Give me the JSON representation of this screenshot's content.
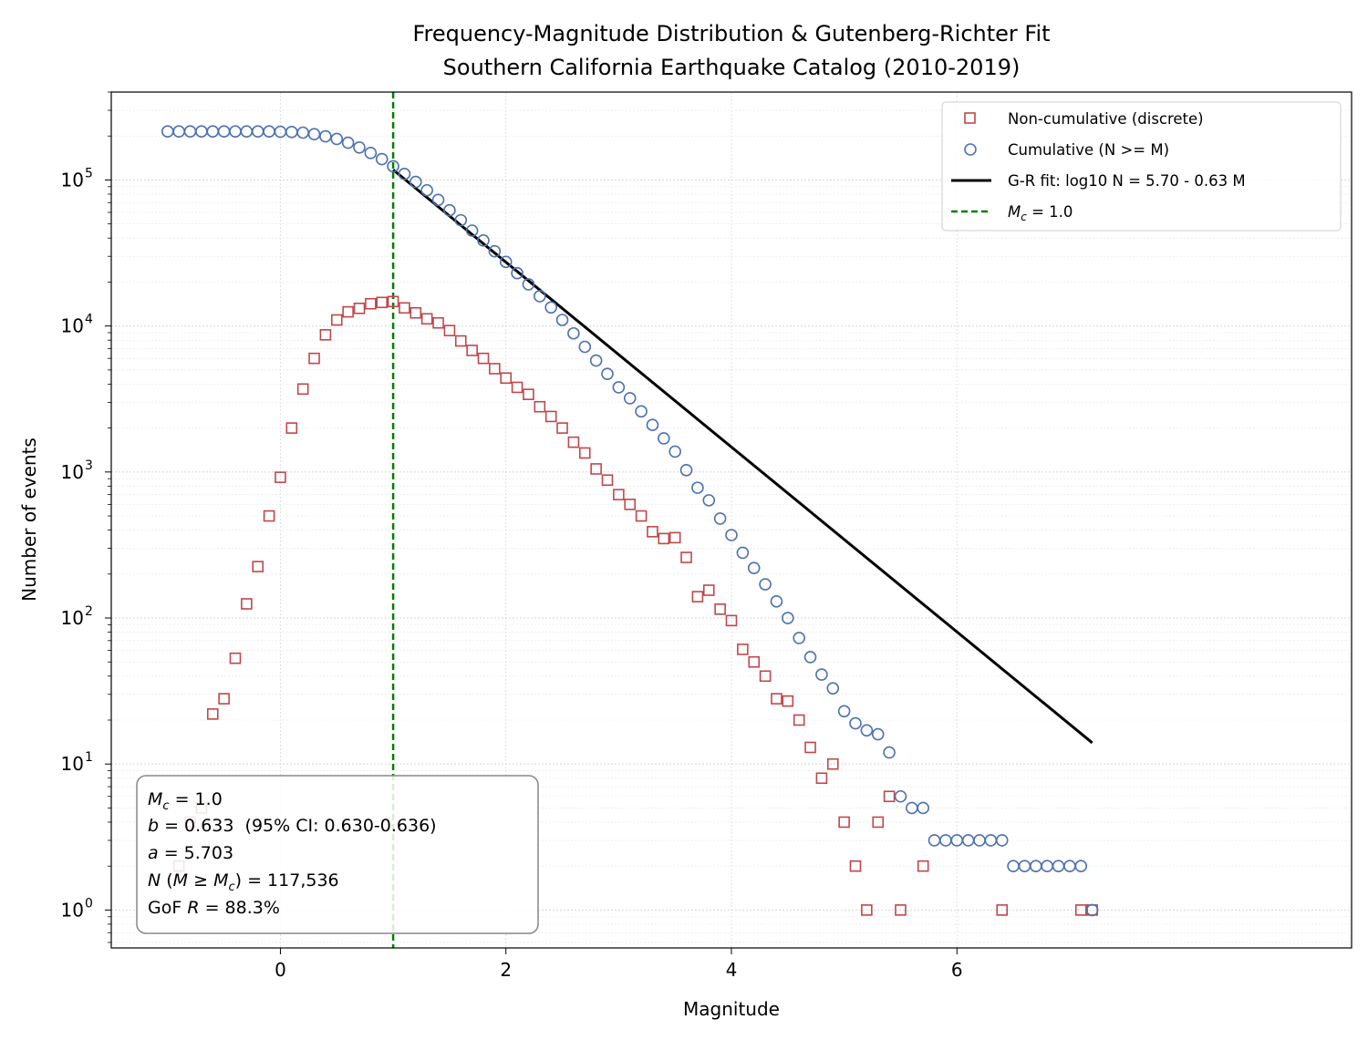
{
  "chart_data": {
    "type": "scatter",
    "title": "Frequency-Magnitude Distribution & Gutenberg-Richter Fit",
    "subtitle": "Southern California Earthquake Catalog (2010-2019)",
    "xlabel": "Magnitude",
    "ylabel": "Number of events",
    "xlim": [
      -1.5,
      9.5
    ],
    "ylim": [
      0.55,
      400000
    ],
    "y_scale": "log",
    "grid": true,
    "legend_position": "top-right",
    "x_ticks": [
      0,
      2,
      4,
      6
    ],
    "x_tick_labels": [
      "0",
      "2",
      "4",
      "6"
    ],
    "y_ticks": [
      1,
      10,
      100,
      1000,
      10000,
      100000
    ],
    "y_tick_labels": [
      {
        "base": "10",
        "exp": "0"
      },
      {
        "base": "10",
        "exp": "1"
      },
      {
        "base": "10",
        "exp": "2"
      },
      {
        "base": "10",
        "exp": "3"
      },
      {
        "base": "10",
        "exp": "4"
      },
      {
        "base": "10",
        "exp": "5"
      }
    ],
    "series": [
      {
        "name": "Non-cumulative (discrete)",
        "marker": "square",
        "color": "#c0474a",
        "points": [
          [
            -0.9,
            2
          ],
          [
            -0.8,
            4
          ],
          [
            -0.7,
            5
          ],
          [
            -0.6,
            22
          ],
          [
            -0.5,
            28
          ],
          [
            -0.4,
            53
          ],
          [
            -0.3,
            125
          ],
          [
            -0.2,
            225
          ],
          [
            -0.1,
            500
          ],
          [
            0.0,
            920
          ],
          [
            0.1,
            2000
          ],
          [
            0.2,
            3700
          ],
          [
            0.3,
            6000
          ],
          [
            0.4,
            8700
          ],
          [
            0.5,
            11000
          ],
          [
            0.6,
            12500
          ],
          [
            0.7,
            13200
          ],
          [
            0.8,
            14200
          ],
          [
            0.9,
            14500
          ],
          [
            1.0,
            14700
          ],
          [
            1.1,
            13300
          ],
          [
            1.2,
            12300
          ],
          [
            1.3,
            11200
          ],
          [
            1.4,
            10500
          ],
          [
            1.5,
            9300
          ],
          [
            1.6,
            7900
          ],
          [
            1.7,
            6800
          ],
          [
            1.8,
            6000
          ],
          [
            1.9,
            5100
          ],
          [
            2.0,
            4400
          ],
          [
            2.1,
            3800
          ],
          [
            2.2,
            3400
          ],
          [
            2.3,
            2800
          ],
          [
            2.4,
            2400
          ],
          [
            2.5,
            2000
          ],
          [
            2.6,
            1600
          ],
          [
            2.7,
            1350
          ],
          [
            2.8,
            1050
          ],
          [
            2.9,
            880
          ],
          [
            3.0,
            700
          ],
          [
            3.1,
            600
          ],
          [
            3.2,
            500
          ],
          [
            3.3,
            390
          ],
          [
            3.4,
            350
          ],
          [
            3.5,
            355
          ],
          [
            3.6,
            260
          ],
          [
            3.7,
            140
          ],
          [
            3.8,
            155
          ],
          [
            3.9,
            115
          ],
          [
            4.0,
            96
          ],
          [
            4.1,
            61
          ],
          [
            4.2,
            50
          ],
          [
            4.3,
            40
          ],
          [
            4.4,
            28
          ],
          [
            4.5,
            27
          ],
          [
            4.6,
            20
          ],
          [
            4.7,
            13
          ],
          [
            4.8,
            8
          ],
          [
            4.9,
            10
          ],
          [
            5.0,
            4
          ],
          [
            5.1,
            2
          ],
          [
            5.2,
            1
          ],
          [
            5.3,
            4
          ],
          [
            5.4,
            6
          ],
          [
            5.5,
            1
          ],
          [
            5.7,
            2
          ],
          [
            6.4,
            1
          ],
          [
            7.1,
            1
          ],
          [
            7.2,
            1
          ]
        ]
      },
      {
        "name": "Cumulative (N >= M)",
        "marker": "circle",
        "color": "#4c72b0",
        "points": [
          [
            -1.0,
            215000
          ],
          [
            -0.9,
            215000
          ],
          [
            -0.8,
            215000
          ],
          [
            -0.7,
            215000
          ],
          [
            -0.6,
            215000
          ],
          [
            -0.5,
            215000
          ],
          [
            -0.4,
            215000
          ],
          [
            -0.3,
            215000
          ],
          [
            -0.2,
            215000
          ],
          [
            -0.1,
            215000
          ],
          [
            0.0,
            214000
          ],
          [
            0.1,
            213000
          ],
          [
            0.2,
            211000
          ],
          [
            0.3,
            206000
          ],
          [
            0.4,
            199000
          ],
          [
            0.5,
            191000
          ],
          [
            0.6,
            180000
          ],
          [
            0.7,
            167000
          ],
          [
            0.8,
            153000
          ],
          [
            0.9,
            139000
          ],
          [
            1.0,
            124000
          ],
          [
            1.1,
            110000
          ],
          [
            1.2,
            97000
          ],
          [
            1.3,
            85000
          ],
          [
            1.4,
            73000
          ],
          [
            1.5,
            62000
          ],
          [
            1.6,
            53000
          ],
          [
            1.7,
            45000
          ],
          [
            1.8,
            38500
          ],
          [
            1.9,
            32500
          ],
          [
            2.0,
            27500
          ],
          [
            2.1,
            23000
          ],
          [
            2.2,
            19300
          ],
          [
            2.3,
            16000
          ],
          [
            2.4,
            13400
          ],
          [
            2.5,
            11000
          ],
          [
            2.6,
            8900
          ],
          [
            2.7,
            7200
          ],
          [
            2.8,
            5800
          ],
          [
            2.9,
            4700
          ],
          [
            3.0,
            3800
          ],
          [
            3.1,
            3200
          ],
          [
            3.2,
            2600
          ],
          [
            3.3,
            2100
          ],
          [
            3.4,
            1700
          ],
          [
            3.5,
            1380
          ],
          [
            3.6,
            1030
          ],
          [
            3.7,
            780
          ],
          [
            3.8,
            640
          ],
          [
            3.9,
            480
          ],
          [
            4.0,
            370
          ],
          [
            4.1,
            280
          ],
          [
            4.2,
            220
          ],
          [
            4.3,
            170
          ],
          [
            4.4,
            130
          ],
          [
            4.5,
            100
          ],
          [
            4.6,
            73
          ],
          [
            4.7,
            54
          ],
          [
            4.8,
            41
          ],
          [
            4.9,
            33
          ],
          [
            5.0,
            23
          ],
          [
            5.1,
            19
          ],
          [
            5.2,
            17
          ],
          [
            5.3,
            16
          ],
          [
            5.4,
            12
          ],
          [
            5.5,
            6
          ],
          [
            5.6,
            5
          ],
          [
            5.7,
            5
          ],
          [
            5.8,
            3
          ],
          [
            5.9,
            3
          ],
          [
            6.0,
            3
          ],
          [
            6.1,
            3
          ],
          [
            6.2,
            3
          ],
          [
            6.3,
            3
          ],
          [
            6.4,
            3
          ],
          [
            6.5,
            2
          ],
          [
            6.6,
            2
          ],
          [
            6.7,
            2
          ],
          [
            6.8,
            2
          ],
          [
            6.9,
            2
          ],
          [
            7.0,
            2
          ],
          [
            7.1,
            2
          ],
          [
            7.2,
            1
          ]
        ]
      },
      {
        "name": "G-R fit: log10 N = 5.70 - 0.63 M",
        "line": "solid",
        "color": "#000000",
        "a": 5.703,
        "b": 0.633,
        "x_range": [
          1.0,
          7.2
        ]
      },
      {
        "name_prefix": "M",
        "name_sub": "c",
        "name_suffix": " = 1.0",
        "line": "dashed",
        "color": "#008000",
        "x": 1.0
      }
    ],
    "annotation": {
      "lines": [
        {
          "var": "M",
          "sub": "c",
          "text": " = 1.0"
        },
        {
          "var": "b",
          "text": " = 0.633  (95% CI: 0.630-0.636)"
        },
        {
          "var": "a",
          "text": " = 5.703"
        },
        {
          "var": "N",
          "text_mid": " (",
          "var2": "M",
          "rel": " ≥ ",
          "var3": "M",
          "sub3": "c",
          "text": ") = 117,536"
        },
        {
          "pre": "GoF ",
          "var": "R",
          "text": " = 88.3%"
        }
      ]
    }
  }
}
